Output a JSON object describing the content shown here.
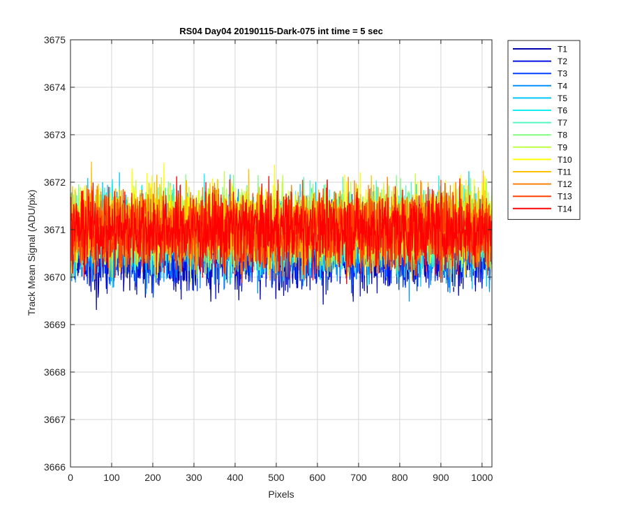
{
  "chart_data": {
    "type": "line",
    "title": "RS04 Day04 20190115-Dark-075 int time = 5 sec",
    "xlabel": "Pixels",
    "ylabel": "Track Mean Signal (ADU/pix)",
    "xlim": [
      0,
      1024
    ],
    "ylim": [
      3666,
      3675
    ],
    "xticks": [
      0,
      100,
      200,
      300,
      400,
      500,
      600,
      700,
      800,
      900,
      1000
    ],
    "yticks": [
      3666,
      3667,
      3668,
      3669,
      3670,
      3671,
      3672,
      3673,
      3674,
      3675
    ],
    "grid": true,
    "legend_position": "outside-top-right",
    "series_mean_approx": 3671.0,
    "series": [
      {
        "name": "T1",
        "color": "#0000a8",
        "mean": 3670.6,
        "spread": 0.75
      },
      {
        "name": "T2",
        "color": "#0010e0",
        "mean": 3670.6,
        "spread": 0.75
      },
      {
        "name": "T3",
        "color": "#0040ff",
        "mean": 3670.7,
        "spread": 0.75
      },
      {
        "name": "T4",
        "color": "#0090ff",
        "mean": 3670.8,
        "spread": 0.75
      },
      {
        "name": "T5",
        "color": "#00c8ff",
        "mean": 3670.9,
        "spread": 0.75
      },
      {
        "name": "T6",
        "color": "#10f0f0",
        "mean": 3671.0,
        "spread": 0.75
      },
      {
        "name": "T7",
        "color": "#50f8c0",
        "mean": 3671.0,
        "spread": 0.75
      },
      {
        "name": "T8",
        "color": "#80ff80",
        "mean": 3671.1,
        "spread": 0.75
      },
      {
        "name": "T9",
        "color": "#c0ff40",
        "mean": 3671.1,
        "spread": 0.75
      },
      {
        "name": "T10",
        "color": "#ffff00",
        "mean": 3671.1,
        "spread": 0.75
      },
      {
        "name": "T11",
        "color": "#ffc000",
        "mean": 3671.1,
        "spread": 0.75
      },
      {
        "name": "T12",
        "color": "#ff8000",
        "mean": 3671.0,
        "spread": 0.75
      },
      {
        "name": "T13",
        "color": "#ff4000",
        "mean": 3671.0,
        "spread": 0.75
      },
      {
        "name": "T14",
        "color": "#ff0000",
        "mean": 3671.0,
        "spread": 0.75
      }
    ]
  }
}
